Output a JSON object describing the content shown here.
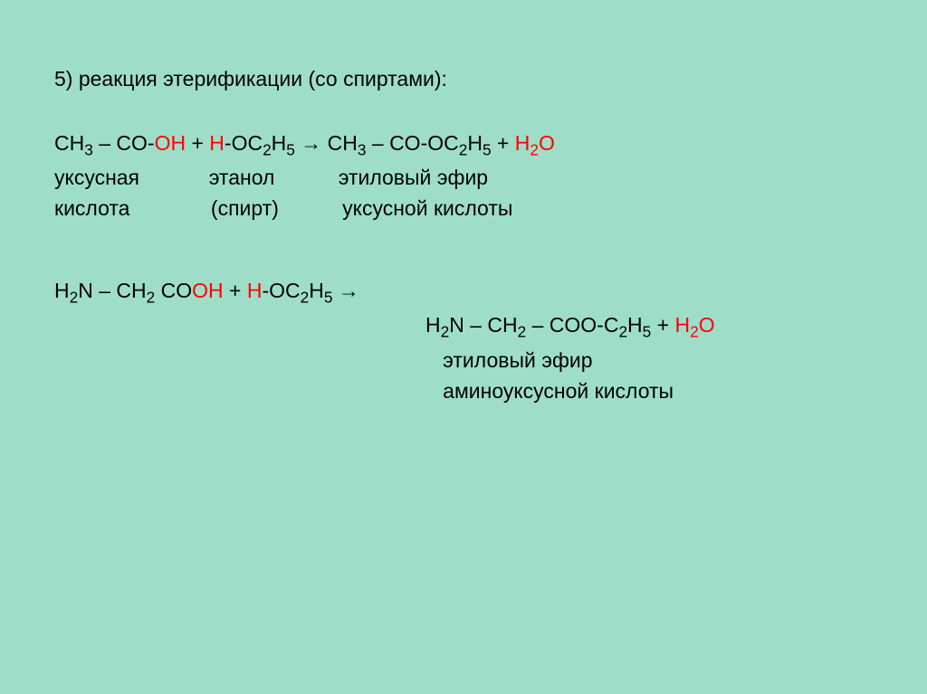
{
  "background_color": "#9edec9",
  "text_color": "#000000",
  "highlight_color": "#ff0000",
  "font_size_pt": 17,
  "heading": {
    "number": "5)",
    "text": "реакция этерификации (со спиртами):"
  },
  "reaction1": {
    "lhs": {
      "p1": "CH",
      "s1": "3",
      "p2": " – CO-",
      "p3_oh": "OH",
      "p4": " + ",
      "p5_h": "H",
      "p6": "-OC",
      "s2": "2",
      "p7": "H",
      "s3": "5",
      "arrow": " → ",
      "p8": "CH",
      "s4": "3",
      "p9": " – CO-OC",
      "s5": "2",
      "p10": "H",
      "s6": "5",
      "p11": " + ",
      "p12_h2o": "H",
      "s7": "2",
      "p13_o": "O"
    },
    "label_row1": {
      "c1": "уксусная",
      "c2": "этанол",
      "c3": "этиловый эфир"
    },
    "label_row2": {
      "c1": "кислота",
      "c2": "(спирт)",
      "c3": "уксусной кислоты"
    }
  },
  "reaction2": {
    "lhs": {
      "p1": "H",
      "s1": "2",
      "p2": "N – CH",
      "s2": "2",
      "p3": " CO",
      "p4_oh": "OH",
      "p5": " + ",
      "p6_h": "H",
      "p7": "-OC",
      "s3": "2",
      "p8": "H",
      "s4": "5",
      "arrow": " →"
    },
    "rhs": {
      "p1": "H",
      "s1": "2",
      "p2": "N – CH",
      "s2": "2",
      "p3": " – COO-C",
      "s3": "2",
      "p4": "H",
      "s4": "5",
      "p5": " + ",
      "p6_h2o": "H",
      "s5": "2",
      "p7_o": "O"
    },
    "label1": "этиловый эфир",
    "label2": "аминоуксусной кислоты"
  }
}
